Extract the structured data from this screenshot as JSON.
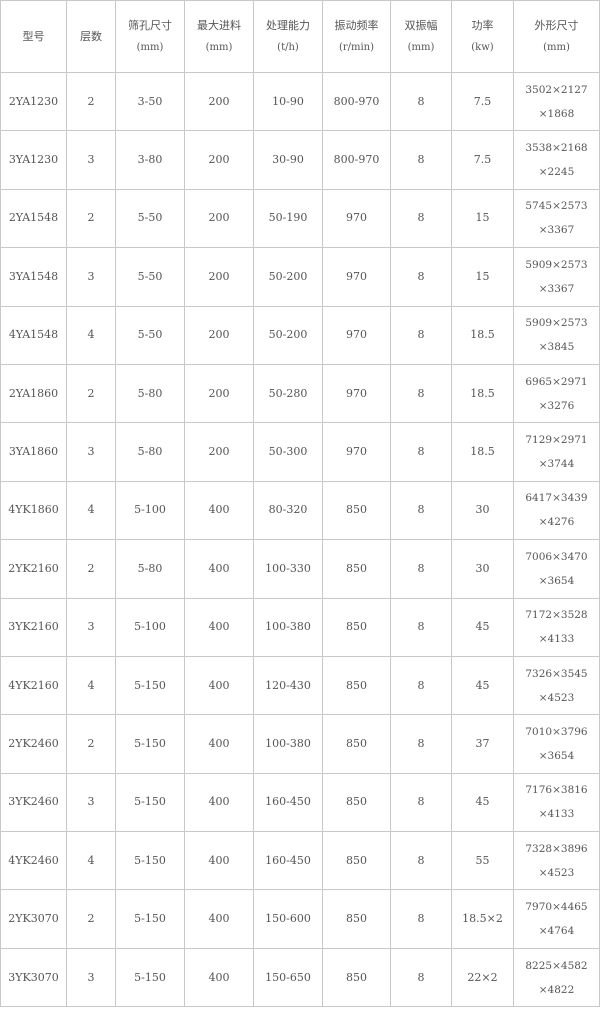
{
  "headers": [
    {
      "label": "型号",
      "unit": ""
    },
    {
      "label": "层数",
      "unit": ""
    },
    {
      "label": "筛孔尺寸",
      "unit": "(mm)"
    },
    {
      "label": "最大进料",
      "unit": "(mm)"
    },
    {
      "label": "处理能力",
      "unit": "(t/h)"
    },
    {
      "label": "振动频率",
      "unit": "(r/min)"
    },
    {
      "label": "双振幅",
      "unit": "(mm)"
    },
    {
      "label": "功率",
      "unit": "(kw)"
    },
    {
      "label": "外形尺寸",
      "unit": "(mm)"
    }
  ],
  "rows": [
    {
      "model": "2YA1230",
      "layers": "2",
      "mesh": "3-50",
      "feed": "200",
      "capacity": "10-90",
      "freq": "800-970",
      "amp": "8",
      "power": "7.5",
      "dim1": "3502×2127",
      "dim2": "×1868"
    },
    {
      "model": "3YA1230",
      "layers": "3",
      "mesh": "3-80",
      "feed": "200",
      "capacity": "30-90",
      "freq": "800-970",
      "amp": "8",
      "power": "7.5",
      "dim1": "3538×2168",
      "dim2": "×2245"
    },
    {
      "model": "2YA1548",
      "layers": "2",
      "mesh": "5-50",
      "feed": "200",
      "capacity": "50-190",
      "freq": "970",
      "amp": "8",
      "power": "15",
      "dim1": "5745×2573",
      "dim2": "×3367"
    },
    {
      "model": "3YA1548",
      "layers": "3",
      "mesh": "5-50",
      "feed": "200",
      "capacity": "50-200",
      "freq": "970",
      "amp": "8",
      "power": "15",
      "dim1": "5909×2573",
      "dim2": "×3367"
    },
    {
      "model": "4YA1548",
      "layers": "4",
      "mesh": "5-50",
      "feed": "200",
      "capacity": "50-200",
      "freq": "970",
      "amp": "8",
      "power": "18.5",
      "dim1": "5909×2573",
      "dim2": "×3845"
    },
    {
      "model": "2YA1860",
      "layers": "2",
      "mesh": "5-80",
      "feed": "200",
      "capacity": "50-280",
      "freq": "970",
      "amp": "8",
      "power": "18.5",
      "dim1": "6965×2971",
      "dim2": "×3276"
    },
    {
      "model": "3YA1860",
      "layers": "3",
      "mesh": "5-80",
      "feed": "200",
      "capacity": "50-300",
      "freq": "970",
      "amp": "8",
      "power": "18.5",
      "dim1": "7129×2971",
      "dim2": "×3744"
    },
    {
      "model": "4YK1860",
      "layers": "4",
      "mesh": "5-100",
      "feed": "400",
      "capacity": "80-320",
      "freq": "850",
      "amp": "8",
      "power": "30",
      "dim1": "6417×3439",
      "dim2": "×4276"
    },
    {
      "model": "2YK2160",
      "layers": "2",
      "mesh": "5-80",
      "feed": "400",
      "capacity": "100-330",
      "freq": "850",
      "amp": "8",
      "power": "30",
      "dim1": "7006×3470",
      "dim2": "×3654"
    },
    {
      "model": "3YK2160",
      "layers": "3",
      "mesh": "5-100",
      "feed": "400",
      "capacity": "100-380",
      "freq": "850",
      "amp": "8",
      "power": "45",
      "dim1": "7172×3528",
      "dim2": "×4133"
    },
    {
      "model": "4YK2160",
      "layers": "4",
      "mesh": "5-150",
      "feed": "400",
      "capacity": "120-430",
      "freq": "850",
      "amp": "8",
      "power": "45",
      "dim1": "7326×3545",
      "dim2": "×4523"
    },
    {
      "model": "2YK2460",
      "layers": "2",
      "mesh": "5-150",
      "feed": "400",
      "capacity": "100-380",
      "freq": "850",
      "amp": "8",
      "power": "37",
      "dim1": "7010×3796",
      "dim2": "×3654"
    },
    {
      "model": "3YK2460",
      "layers": "3",
      "mesh": "5-150",
      "feed": "400",
      "capacity": "160-450",
      "freq": "850",
      "amp": "8",
      "power": "45",
      "dim1": "7176×3816",
      "dim2": "×4133"
    },
    {
      "model": "4YK2460",
      "layers": "4",
      "mesh": "5-150",
      "feed": "400",
      "capacity": "160-450",
      "freq": "850",
      "amp": "8",
      "power": "55",
      "dim1": "7328×3896",
      "dim2": "×4523"
    },
    {
      "model": "2YK3070",
      "layers": "2",
      "mesh": "5-150",
      "feed": "400",
      "capacity": "150-600",
      "freq": "850",
      "amp": "8",
      "power": "18.5×2",
      "dim1": "7970×4465",
      "dim2": "×4764"
    },
    {
      "model": "3YK3070",
      "layers": "3",
      "mesh": "5-150",
      "feed": "400",
      "capacity": "150-650",
      "freq": "850",
      "amp": "8",
      "power": "22×2",
      "dim1": "8225×4582",
      "dim2": "×4822"
    }
  ]
}
